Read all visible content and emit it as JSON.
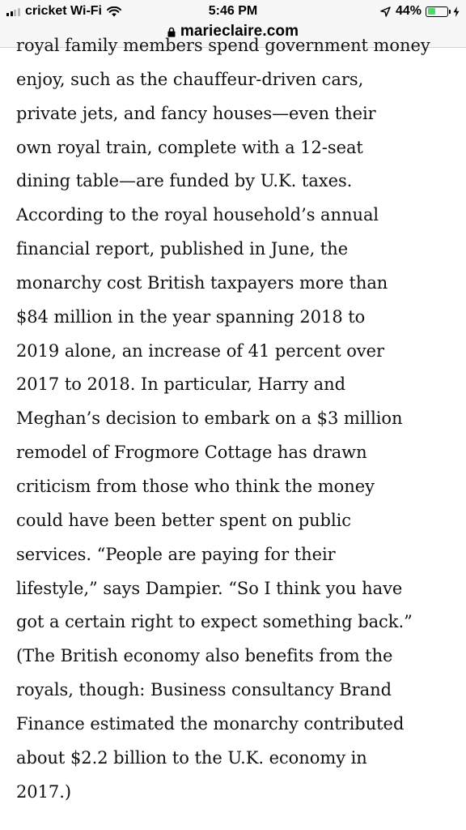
{
  "status_bar": {
    "carrier": "cricket Wi-Fi",
    "time": "5:46 PM",
    "battery_percent": "44%",
    "battery_level": 0.44
  },
  "url_bar": {
    "domain": "marieclaire.com"
  },
  "article": {
    "lines": [
      "royal family members spend government money",
      "enjoy, such as the chauffeur-driven cars,",
      "private jets, and fancy houses—even their",
      "own royal train, complete with a 12-seat",
      "dining table—are funded by U.K. taxes.",
      "According to the royal household’s annual",
      "financial report, published in June, the",
      "monarchy cost British taxpayers more than",
      "$84 million in the year spanning 2018 to",
      "2019 alone, an increase of 41 percent over",
      "2017 to 2018. In particular, Harry and",
      "Meghan’s decision to embark on a $3 million",
      "remodel of Frogmore Cottage has drawn",
      "criticism from those who think the money",
      "could have been better spent on public",
      "services. “People are paying for their",
      "lifestyle,” says Dampier. “So I think you have",
      "got a certain right to expect something back.”",
      "(The British economy also benefits from the",
      "royals, though: Business consultancy Brand",
      "Finance estimated the monarchy contributed",
      "about $2.2 billion to the U.K. economy in",
      "2017.)"
    ]
  }
}
